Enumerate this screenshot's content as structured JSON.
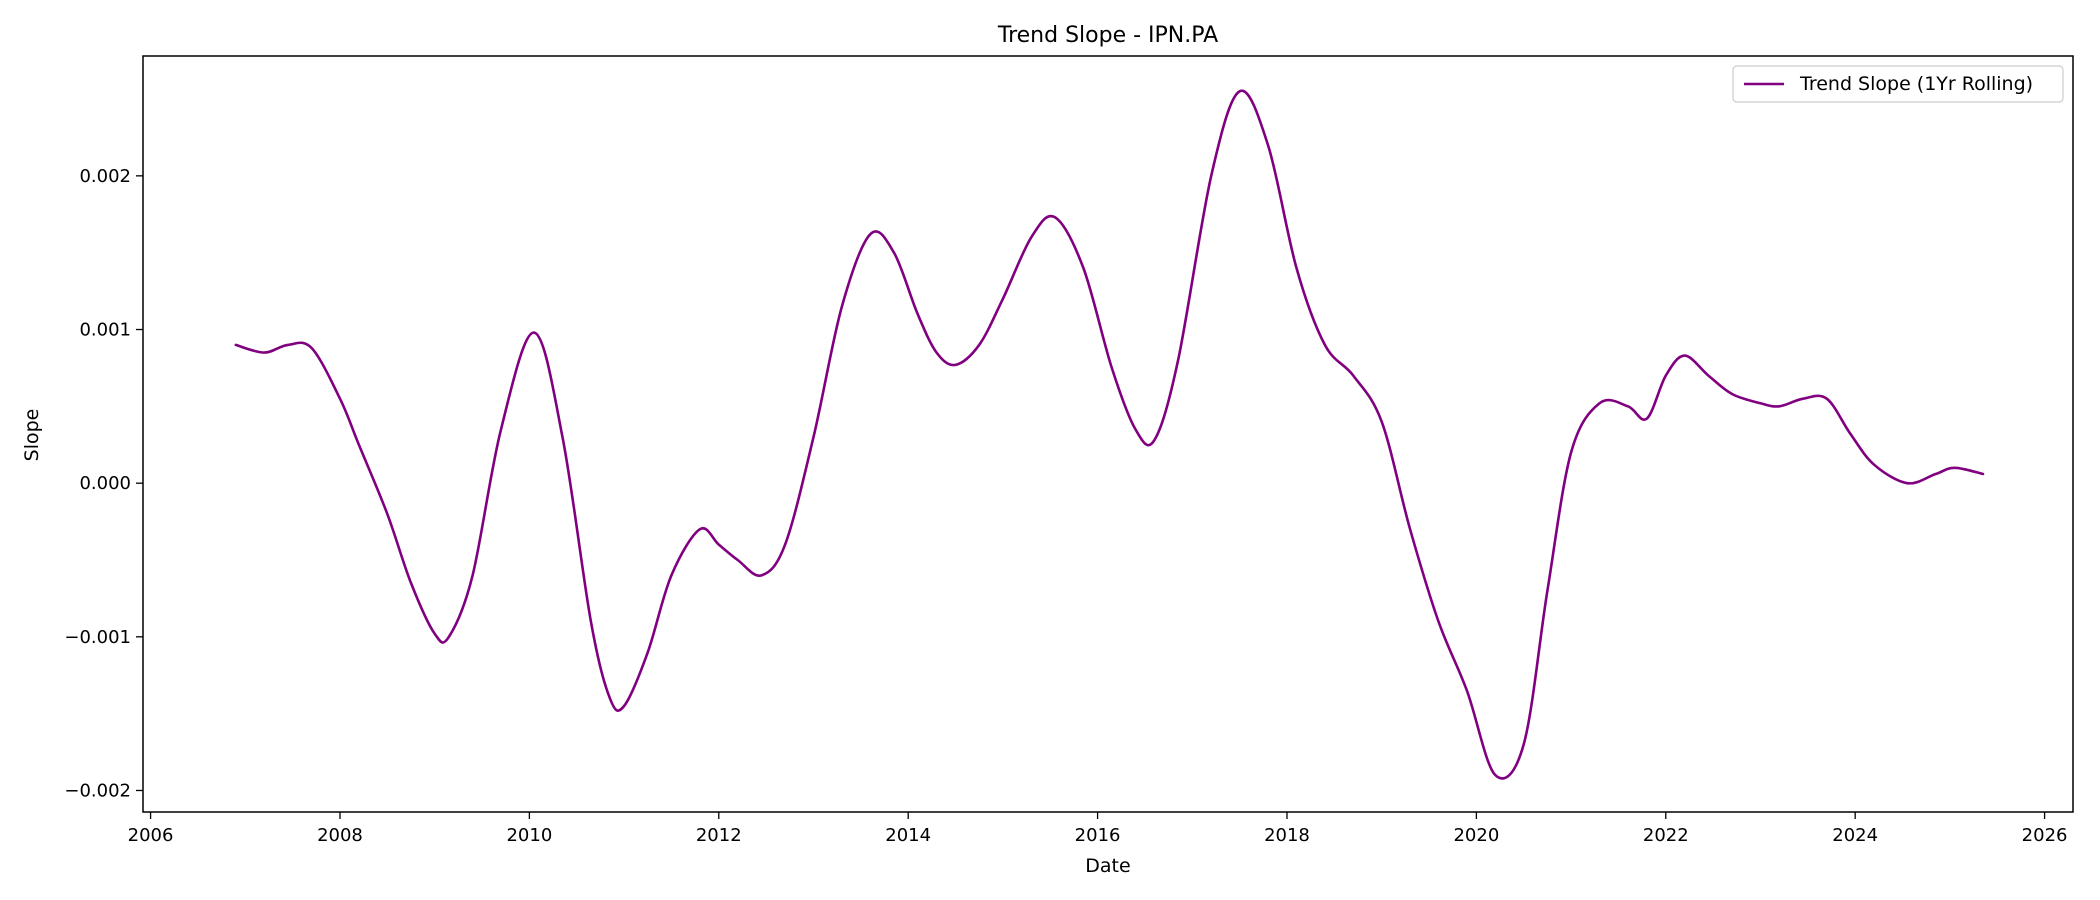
{
  "chart_data": {
    "type": "line",
    "title": "Trend Slope - IPN.PA",
    "xlabel": "Date",
    "ylabel": "Slope",
    "xlim": [
      2005.92,
      2026.3
    ],
    "ylim": [
      -0.00214,
      0.00278
    ],
    "x_ticks": [
      2006,
      2008,
      2010,
      2012,
      2014,
      2016,
      2018,
      2020,
      2022,
      2024,
      2026
    ],
    "y_ticks": [
      -0.002,
      -0.001,
      0.0,
      0.001,
      0.002
    ],
    "y_tick_labels": [
      "−0.002",
      "−0.001",
      "0.000",
      "0.001",
      "0.002"
    ],
    "grid": false,
    "legend": {
      "placement": "top-right"
    },
    "series": [
      {
        "name": "Trend Slope (1Yr Rolling)",
        "color": "#800080",
        "x": [
          2006.9,
          2007.2,
          2007.45,
          2007.7,
          2008.0,
          2008.2,
          2008.5,
          2008.75,
          2009.0,
          2009.15,
          2009.4,
          2009.7,
          2010.05,
          2010.35,
          2010.65,
          2010.85,
          2011.0,
          2011.25,
          2011.5,
          2011.8,
          2012.0,
          2012.2,
          2012.45,
          2012.7,
          2013.0,
          2013.3,
          2013.6,
          2013.85,
          2014.1,
          2014.3,
          2014.5,
          2014.75,
          2015.0,
          2015.3,
          2015.55,
          2015.85,
          2016.15,
          2016.4,
          2016.6,
          2016.85,
          2017.2,
          2017.5,
          2017.8,
          2018.1,
          2018.4,
          2018.7,
          2019.0,
          2019.3,
          2019.6,
          2019.9,
          2020.2,
          2020.5,
          2020.75,
          2021.0,
          2021.3,
          2021.6,
          2021.8,
          2022.0,
          2022.2,
          2022.45,
          2022.7,
          2023.0,
          2023.2,
          2023.45,
          2023.7,
          2023.95,
          2024.2,
          2024.55,
          2024.85,
          2025.05,
          2025.35
        ],
        "values": [
          0.0009,
          0.00085,
          0.0009,
          0.00088,
          0.00055,
          0.00025,
          -0.0002,
          -0.00065,
          -0.00098,
          -0.001,
          -0.0006,
          0.00035,
          0.00098,
          0.0003,
          -0.0009,
          -0.0014,
          -0.00145,
          -0.0011,
          -0.0006,
          -0.0003,
          -0.0004,
          -0.0005,
          -0.0006,
          -0.0004,
          0.0003,
          0.00115,
          0.00162,
          0.0015,
          0.0011,
          0.00085,
          0.00077,
          0.0009,
          0.0012,
          0.0016,
          0.00173,
          0.0014,
          0.00075,
          0.00035,
          0.00028,
          0.0008,
          0.002,
          0.00255,
          0.0022,
          0.0014,
          0.0009,
          0.0007,
          0.0004,
          -0.0003,
          -0.0009,
          -0.00135,
          -0.0019,
          -0.0017,
          -0.0007,
          0.0002,
          0.00052,
          0.0005,
          0.00042,
          0.0007,
          0.00083,
          0.0007,
          0.00058,
          0.00052,
          0.0005,
          0.00055,
          0.00055,
          0.00032,
          0.00012,
          0.0,
          6e-05,
          0.0001,
          6e-05
        ]
      }
    ]
  }
}
